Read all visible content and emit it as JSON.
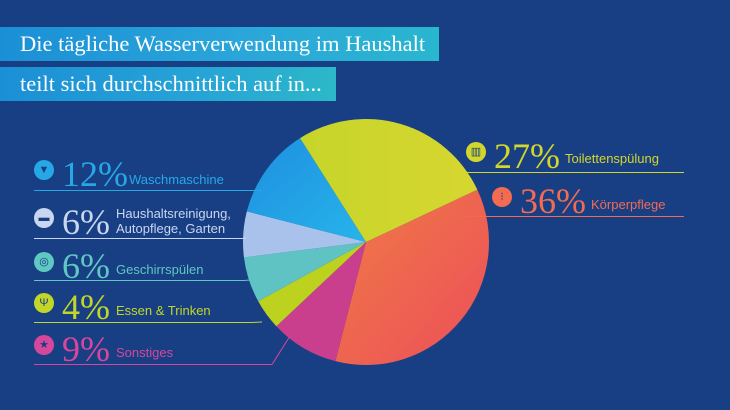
{
  "title": {
    "line1": "Die tägliche Wasserverwendung im Haushalt",
    "line2": "teilt sich durchschnittlich auf in..."
  },
  "chart_data": {
    "type": "pie",
    "unit": "%",
    "slices": [
      {
        "label": "Körperpflege",
        "value": 36,
        "pct_label": "36%",
        "color": "#ee5f4e",
        "icon": "shower-icon"
      },
      {
        "label": "Sonstiges",
        "value": 9,
        "pct_label": "9%",
        "color": "#c93f8e",
        "icon": "star-icon"
      },
      {
        "label": "Essen & Trinken",
        "value": 4,
        "pct_label": "4%",
        "color": "#bcd21f",
        "icon": "cutlery-icon"
      },
      {
        "label": "Geschirrspülen",
        "value": 6,
        "pct_label": "6%",
        "color": "#5fc3c3",
        "icon": "plate-icon"
      },
      {
        "label": "Haushaltsreinigung,\nAutopflege, Garten",
        "value": 6,
        "pct_label": "6%",
        "color": "#a9c2ec",
        "icon": "car-icon"
      },
      {
        "label": "Waschmaschine",
        "value": 12,
        "pct_label": "12%",
        "color": "#1e9fe3",
        "icon": "shirt-icon"
      },
      {
        "label": "Toilettenspülung",
        "value": 27,
        "pct_label": "27%",
        "color": "#cfd629",
        "icon": "toilet-icon"
      }
    ]
  },
  "colors": {
    "background": "#183f84",
    "title_bar_start": "#1b8fd6",
    "title_bar_end": "#2cb8c9"
  }
}
